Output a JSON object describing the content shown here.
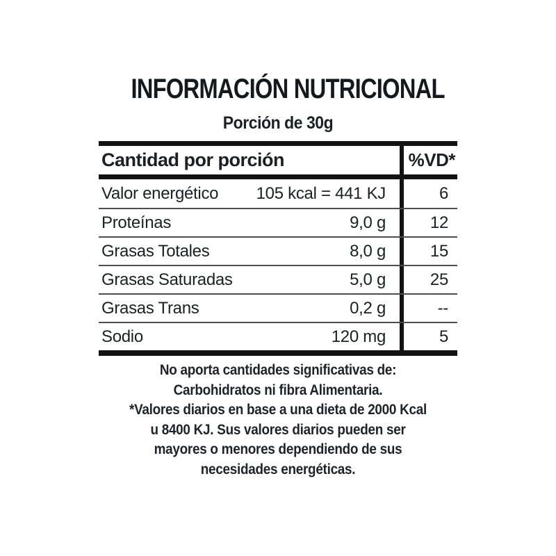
{
  "label": {
    "title": "INFORMACIÓN NUTRICIONAL",
    "serving": "Porción de 30g",
    "table": {
      "header": {
        "amount_col": "Cantidad por porción",
        "dv_col": "%VD*"
      },
      "rows": [
        {
          "name": "Valor energético",
          "amount": "105 kcal = 441 KJ",
          "dv": "6"
        },
        {
          "name": "Proteínas",
          "amount": "9,0 g",
          "dv": "12"
        },
        {
          "name": "Grasas Totales",
          "amount": "8,0 g",
          "dv": "15"
        },
        {
          "name": "Grasas Saturadas",
          "amount": "5,0 g",
          "dv": "25"
        },
        {
          "name": "Grasas Trans",
          "amount": "0,2 g",
          "dv": "--"
        },
        {
          "name": "Sodio",
          "amount": "120 mg",
          "dv": "5"
        }
      ]
    },
    "footnote_lines": [
      "No aporta cantidades significativas de:",
      "Carbohidratos ni fibra Alimentaria.",
      "*Valores diarios en base a una dieta de 2000 Kcal",
      "u 8400 KJ. Sus valores diarios pueden ser",
      "mayores o menores dependiendo de sus",
      "necesidades energéticas."
    ],
    "colors": {
      "text": "#1c1f24",
      "rule_heavy": "#131313",
      "rule_light": "#4d4d4d",
      "background": "#ffffff"
    }
  }
}
